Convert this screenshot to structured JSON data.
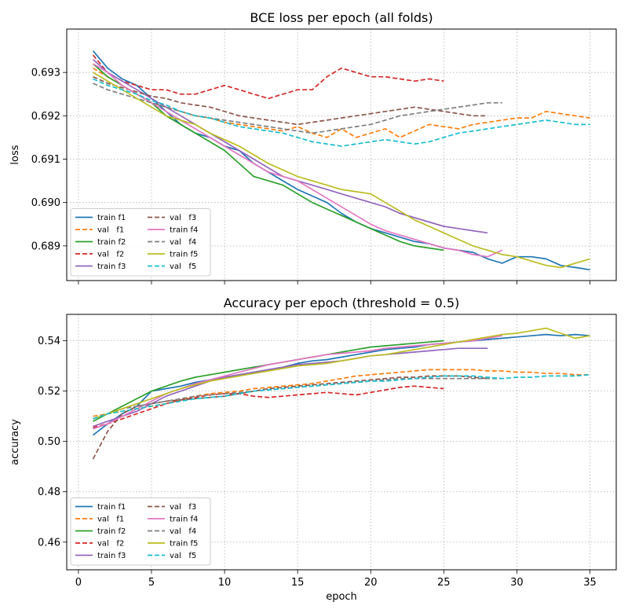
{
  "chart_data": [
    {
      "type": "line",
      "title": "BCE loss per epoch (all folds)",
      "xlabel": "",
      "ylabel": "loss",
      "xlim": [
        -0.8,
        36.8
      ],
      "ylim": [
        0.6882,
        0.694
      ],
      "xticks": [
        0,
        5,
        10,
        15,
        20,
        25,
        30,
        35
      ],
      "yticks": [
        0.689,
        0.69,
        0.691,
        0.692,
        0.693
      ],
      "ytick_labels": [
        "0.689",
        "0.690",
        "0.691",
        "0.692",
        "0.693"
      ],
      "show_xtick_labels": false,
      "grid": true,
      "legend_position": "lower-left",
      "series": [
        {
          "name": "train f1",
          "color": "#1f77b4",
          "dash": "solid",
          "values": [
            0.6935,
            0.6931,
            0.69285,
            0.6927,
            0.6924,
            0.6921,
            0.6918,
            0.6916,
            0.6915,
            0.6913,
            0.6912,
            0.6909,
            0.6907,
            0.6905,
            0.6903,
            0.69015,
            0.69,
            0.68975,
            0.68955,
            0.6894,
            0.6893,
            0.6892,
            0.6891,
            0.68905,
            0.68895,
            0.6889,
            0.68885,
            0.6887,
            0.6886,
            0.68875,
            0.68875,
            0.6887,
            0.68855,
            0.6885,
            0.68845
          ]
        },
        {
          "name": "val   f1",
          "color": "#ff7f0e",
          "dash": "dashed",
          "values": [
            0.6931,
            0.6929,
            0.6927,
            0.6925,
            0.6923,
            0.6922,
            0.6921,
            0.692,
            0.69195,
            0.69185,
            0.6918,
            0.69175,
            0.6917,
            0.69165,
            0.69175,
            0.6916,
            0.6915,
            0.6917,
            0.6915,
            0.6916,
            0.6917,
            0.6915,
            0.69165,
            0.6918,
            0.69175,
            0.6917,
            0.6918,
            0.69185,
            0.6919,
            0.69195,
            0.69195,
            0.6921,
            0.69205,
            0.692,
            0.69195
          ]
        },
        {
          "name": "train f2",
          "color": "#2ca02c",
          "dash": "solid",
          "values": [
            0.6932,
            0.6929,
            0.6927,
            0.6925,
            0.6923,
            0.692,
            0.6918,
            0.6916,
            0.6914,
            0.6912,
            0.6909,
            0.6906,
            0.6905,
            0.6904,
            0.6902,
            0.69,
            0.68985,
            0.6897,
            0.68955,
            0.6894,
            0.68925,
            0.6891,
            0.689,
            0.68895,
            0.6889
          ]
        },
        {
          "name": "val   f2",
          "color": "#d62728",
          "dash": "dashed",
          "values": [
            0.6934,
            0.693,
            0.6928,
            0.6927,
            0.6926,
            0.6926,
            0.6925,
            0.6925,
            0.6926,
            0.6927,
            0.6926,
            0.6925,
            0.6924,
            0.6925,
            0.6926,
            0.6926,
            0.6929,
            0.6931,
            0.693,
            0.6929,
            0.6929,
            0.69285,
            0.6928,
            0.69285,
            0.6928
          ]
        },
        {
          "name": "train f3",
          "color": "#9467bd",
          "dash": "solid",
          "values": [
            0.6933,
            0.693,
            0.6928,
            0.6926,
            0.6924,
            0.6922,
            0.692,
            0.6918,
            0.6916,
            0.6914,
            0.6912,
            0.691,
            0.6908,
            0.6906,
            0.6905,
            0.6904,
            0.6903,
            0.6902,
            0.6901,
            0.69,
            0.6899,
            0.68975,
            0.68965,
            0.68955,
            0.68945,
            0.6894,
            0.68935,
            0.6893
          ]
        },
        {
          "name": "val   f3",
          "color": "#8c564b",
          "dash": "dashed",
          "values": [
            0.6929,
            0.69275,
            0.69265,
            0.69255,
            0.69245,
            0.6924,
            0.6923,
            0.69225,
            0.6922,
            0.6921,
            0.692,
            0.69195,
            0.6919,
            0.69185,
            0.6918,
            0.69185,
            0.6919,
            0.69195,
            0.692,
            0.69205,
            0.6921,
            0.69215,
            0.6922,
            0.69215,
            0.6921,
            0.69205,
            0.692,
            0.692
          ]
        },
        {
          "name": "train f4",
          "color": "#e377c2",
          "dash": "solid",
          "values": [
            0.6932,
            0.693,
            0.6927,
            0.6925,
            0.6923,
            0.6921,
            0.6919,
            0.6917,
            0.6915,
            0.6913,
            0.6911,
            0.6909,
            0.6907,
            0.6906,
            0.6905,
            0.6903,
            0.6901,
            0.6899,
            0.6897,
            0.6895,
            0.68935,
            0.68925,
            0.68915,
            0.68905,
            0.68895,
            0.6889,
            0.6888,
            0.68875,
            0.6889
          ]
        },
        {
          "name": "val   f4",
          "color": "#7f7f7f",
          "dash": "dashed",
          "values": [
            0.69275,
            0.6926,
            0.6925,
            0.6924,
            0.6923,
            0.6922,
            0.6921,
            0.692,
            0.69195,
            0.6919,
            0.69185,
            0.6918,
            0.69175,
            0.6917,
            0.69165,
            0.6916,
            0.69165,
            0.6917,
            0.69175,
            0.6918,
            0.6919,
            0.692,
            0.69205,
            0.6921,
            0.69215,
            0.6922,
            0.69225,
            0.6923,
            0.6923
          ]
        },
        {
          "name": "train f5",
          "color": "#bcbd22",
          "dash": "solid",
          "values": [
            0.693,
            0.6928,
            0.6926,
            0.6924,
            0.6922,
            0.692,
            0.6919,
            0.6918,
            0.6916,
            0.69145,
            0.6913,
            0.6911,
            0.6909,
            0.69075,
            0.6906,
            0.6905,
            0.6904,
            0.6903,
            0.69025,
            0.6902,
            0.69,
            0.6898,
            0.6896,
            0.68945,
            0.6893,
            0.68915,
            0.689,
            0.6889,
            0.6888,
            0.68875,
            0.68865,
            0.68855,
            0.6885,
            0.6886,
            0.6887
          ]
        },
        {
          "name": "val   f5",
          "color": "#17becf",
          "dash": "dashed",
          "values": [
            0.69285,
            0.6927,
            0.6926,
            0.6925,
            0.69235,
            0.69225,
            0.6921,
            0.692,
            0.69195,
            0.69185,
            0.69175,
            0.6917,
            0.69165,
            0.6916,
            0.6915,
            0.6914,
            0.69135,
            0.6913,
            0.69135,
            0.6914,
            0.69145,
            0.6914,
            0.69135,
            0.6914,
            0.6915,
            0.6916,
            0.69165,
            0.6917,
            0.69175,
            0.6918,
            0.69185,
            0.6919,
            0.69185,
            0.6918,
            0.6918
          ]
        }
      ]
    },
    {
      "type": "line",
      "title": "Accuracy per epoch (threshold = 0.5)",
      "xlabel": "epoch",
      "ylabel": "accuracy",
      "xlim": [
        -0.8,
        36.8
      ],
      "ylim": [
        0.449,
        0.5505
      ],
      "xticks": [
        0,
        5,
        10,
        15,
        20,
        25,
        30,
        35
      ],
      "xtick_labels": [
        "0",
        "5",
        "10",
        "15",
        "20",
        "25",
        "30",
        "35"
      ],
      "yticks": [
        0.46,
        0.48,
        0.5,
        0.52,
        0.54
      ],
      "ytick_labels": [
        "0.46",
        "0.48",
        "0.50",
        "0.52",
        "0.54"
      ],
      "show_xtick_labels": true,
      "grid": true,
      "legend_position": "lower-left",
      "series": [
        {
          "name": "train f1",
          "color": "#1f77b4",
          "dash": "solid",
          "values": [
            0.5025,
            0.507,
            0.511,
            0.514,
            0.52,
            0.521,
            0.522,
            0.5235,
            0.5245,
            0.5255,
            0.5265,
            0.5275,
            0.5285,
            0.5295,
            0.531,
            0.532,
            0.5325,
            0.5335,
            0.5345,
            0.5355,
            0.5365,
            0.537,
            0.5375,
            0.5385,
            0.539,
            0.5395,
            0.54,
            0.5405,
            0.541,
            0.5415,
            0.542,
            0.5425,
            0.542,
            0.5425,
            0.542
          ]
        },
        {
          "name": "val   f1",
          "color": "#ff7f0e",
          "dash": "dashed",
          "values": [
            0.51,
            0.511,
            0.512,
            0.513,
            0.514,
            0.515,
            0.5165,
            0.518,
            0.519,
            0.5195,
            0.52,
            0.521,
            0.5215,
            0.522,
            0.5225,
            0.523,
            0.524,
            0.525,
            0.526,
            0.5265,
            0.527,
            0.5275,
            0.528,
            0.5285,
            0.5285,
            0.5285,
            0.5285,
            0.528,
            0.528,
            0.5275,
            0.5275,
            0.527,
            0.527,
            0.5265,
            0.5265
          ]
        },
        {
          "name": "train f2",
          "color": "#2ca02c",
          "dash": "solid",
          "values": [
            0.508,
            0.511,
            0.514,
            0.517,
            0.52,
            0.522,
            0.524,
            0.5255,
            0.5265,
            0.5275,
            0.5285,
            0.5295,
            0.5305,
            0.5315,
            0.5325,
            0.5335,
            0.5345,
            0.5355,
            0.5365,
            0.5375,
            0.538,
            0.5385,
            0.539,
            0.5395,
            0.54
          ]
        },
        {
          "name": "val   f2",
          "color": "#d62728",
          "dash": "dashed",
          "values": [
            0.5055,
            0.507,
            0.509,
            0.511,
            0.513,
            0.515,
            0.5165,
            0.5175,
            0.5185,
            0.519,
            0.519,
            0.518,
            0.5175,
            0.518,
            0.5185,
            0.519,
            0.5195,
            0.519,
            0.5185,
            0.5195,
            0.5205,
            0.5215,
            0.522,
            0.5215,
            0.521
          ]
        },
        {
          "name": "train f3",
          "color": "#9467bd",
          "dash": "solid",
          "values": [
            0.506,
            0.508,
            0.51,
            0.512,
            0.515,
            0.518,
            0.52,
            0.522,
            0.524,
            0.5255,
            0.5265,
            0.5275,
            0.5285,
            0.5295,
            0.5305,
            0.531,
            0.5315,
            0.532,
            0.533,
            0.534,
            0.5345,
            0.535,
            0.5355,
            0.536,
            0.5365,
            0.537,
            0.537,
            0.537
          ]
        },
        {
          "name": "val   f3",
          "color": "#8c564b",
          "dash": "dashed",
          "values": [
            0.493,
            0.504,
            0.511,
            0.514,
            0.515,
            0.516,
            0.5165,
            0.517,
            0.5175,
            0.518,
            0.519,
            0.52,
            0.521,
            0.5215,
            0.522,
            0.5225,
            0.523,
            0.5235,
            0.524,
            0.5245,
            0.525,
            0.5255,
            0.5255,
            0.526,
            0.526,
            0.526,
            0.5255,
            0.525
          ]
        },
        {
          "name": "train f4",
          "color": "#e377c2",
          "dash": "solid",
          "values": [
            0.505,
            0.507,
            0.51,
            0.513,
            0.516,
            0.519,
            0.521,
            0.523,
            0.5245,
            0.526,
            0.5275,
            0.529,
            0.5305,
            0.5315,
            0.5325,
            0.5335,
            0.5345,
            0.535,
            0.5355,
            0.536,
            0.537,
            0.5375,
            0.538,
            0.5385,
            0.539,
            0.5395,
            0.54,
            0.541,
            0.542
          ]
        },
        {
          "name": "val   f4",
          "color": "#7f7f7f",
          "dash": "dashed",
          "values": [
            0.509,
            0.511,
            0.513,
            0.514,
            0.515,
            0.516,
            0.517,
            0.518,
            0.5185,
            0.519,
            0.5195,
            0.52,
            0.5205,
            0.521,
            0.5215,
            0.522,
            0.5225,
            0.523,
            0.5235,
            0.524,
            0.5245,
            0.525,
            0.525,
            0.525,
            0.525,
            0.525,
            0.525,
            0.525,
            0.525
          ]
        },
        {
          "name": "train f5",
          "color": "#bcbd22",
          "dash": "solid",
          "values": [
            0.509,
            0.511,
            0.513,
            0.515,
            0.517,
            0.519,
            0.521,
            0.5225,
            0.524,
            0.525,
            0.526,
            0.527,
            0.528,
            0.529,
            0.53,
            0.5305,
            0.531,
            0.532,
            0.533,
            0.534,
            0.5345,
            0.5355,
            0.5365,
            0.5375,
            0.5385,
            0.5395,
            0.5405,
            0.5415,
            0.5425,
            0.543,
            0.544,
            0.545,
            0.543,
            0.541,
            0.542
          ]
        },
        {
          "name": "val   f5",
          "color": "#17becf",
          "dash": "dashed",
          "values": [
            0.509,
            0.511,
            0.512,
            0.513,
            0.514,
            0.515,
            0.516,
            0.517,
            0.5175,
            0.518,
            0.519,
            0.52,
            0.5205,
            0.521,
            0.5215,
            0.522,
            0.5225,
            0.523,
            0.5235,
            0.524,
            0.524,
            0.5245,
            0.525,
            0.5255,
            0.526,
            0.526,
            0.526,
            0.5255,
            0.525,
            0.5255,
            0.5255,
            0.526,
            0.526,
            0.526,
            0.5265
          ]
        }
      ]
    }
  ]
}
